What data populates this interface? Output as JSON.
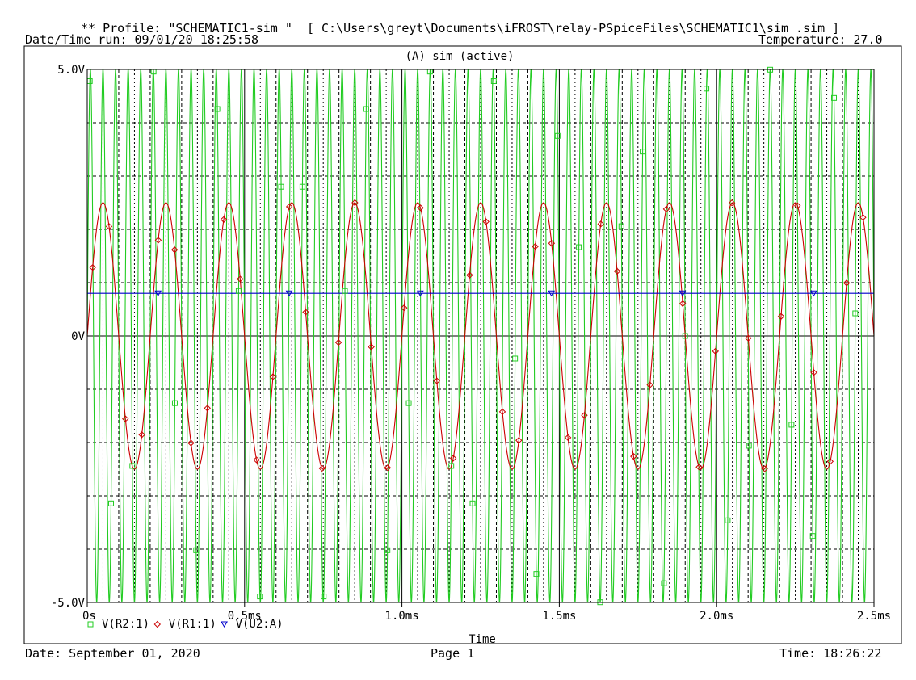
{
  "header": {
    "profile_line": "** Profile: \"SCHEMATIC1-sim \"  [ C:\\Users\\greyt\\Documents\\iFROST\\relay-PSpiceFiles\\SCHEMATIC1\\sim .sim ]",
    "run_line": "Date/Time run: 09/01/20 18:25:58",
    "temperature": "Temperature: 27.0"
  },
  "footer": {
    "date": "Date: September 01, 2020",
    "page": "Page 1",
    "time": "Time: 18:26:22"
  },
  "colors": {
    "r2": "#22cc22",
    "r1": "#cc0000",
    "u2": "#0000cc",
    "grid": "#000000",
    "background": "#ffffff"
  },
  "chart_data": {
    "type": "line",
    "title": "(A) sim  (active)",
    "xlabel": "Time",
    "ylabel": "",
    "xlim": [
      0,
      2.5
    ],
    "ylim": [
      -5,
      5
    ],
    "x_unit": "ms",
    "x_ticks": [
      0,
      0.5,
      1.0,
      1.5,
      2.0,
      2.5
    ],
    "x_tick_labels": [
      "0s",
      "0.5ms",
      "1.0ms",
      "1.5ms",
      "2.0ms",
      "2.5ms"
    ],
    "y_ticks": [
      -5,
      0,
      5
    ],
    "y_tick_labels": [
      "-5.0V",
      "0V",
      "5.0V"
    ],
    "grid": true,
    "legend_position": "bottom-left",
    "series": [
      {
        "name": "V(R2:1)",
        "marker": "square",
        "color": "#22cc22",
        "waveform": "sine",
        "amplitude": 5.0,
        "offset": 0,
        "frequency_khz": 25.0
      },
      {
        "name": "V(R1:1)",
        "marker": "diamond",
        "color": "#cc0000",
        "waveform": "sine",
        "amplitude": 2.5,
        "offset": 0,
        "frequency_khz": 5.0
      },
      {
        "name": "V(U2:A)",
        "marker": "triangle-down",
        "color": "#0000cc",
        "waveform": "dc",
        "value": 0.8
      }
    ]
  }
}
